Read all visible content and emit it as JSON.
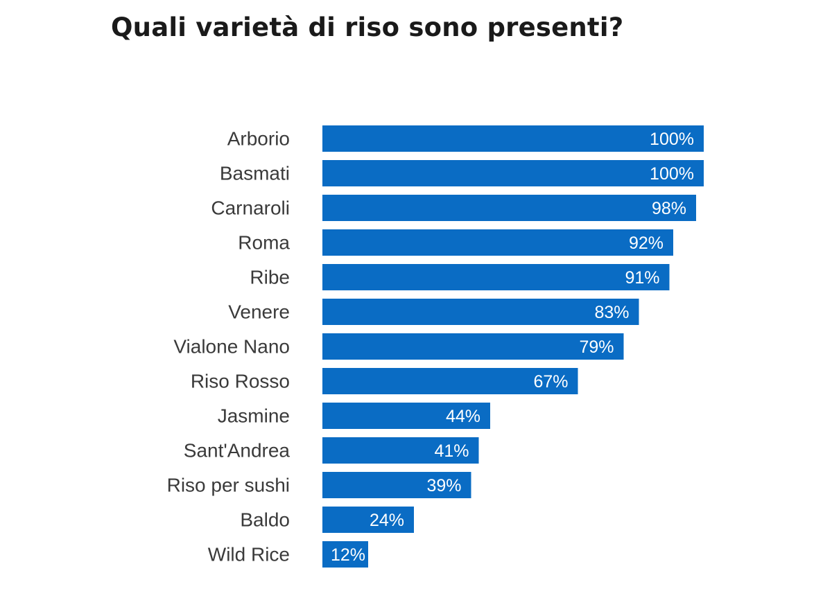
{
  "chart_data": {
    "type": "bar",
    "orientation": "horizontal",
    "title": "Quali varietà di riso sono presenti?",
    "categories": [
      "Arborio",
      "Basmati",
      "Carnaroli",
      "Roma",
      "Ribe",
      "Venere",
      "Vialone Nano",
      "Riso Rosso",
      "Jasmine",
      "Sant'Andrea",
      "Riso per sushi",
      "Baldo",
      "Wild Rice"
    ],
    "values": [
      100,
      100,
      98,
      92,
      91,
      83,
      79,
      67,
      44,
      41,
      39,
      24,
      12
    ],
    "value_labels": [
      "100%",
      "100%",
      "98%",
      "92%",
      "91%",
      "83%",
      "79%",
      "67%",
      "44%",
      "41%",
      "39%",
      "24%",
      "12%"
    ],
    "unit": "%",
    "xlim": [
      0,
      100
    ],
    "grid": false,
    "bar_color": "#0a6cc4"
  }
}
